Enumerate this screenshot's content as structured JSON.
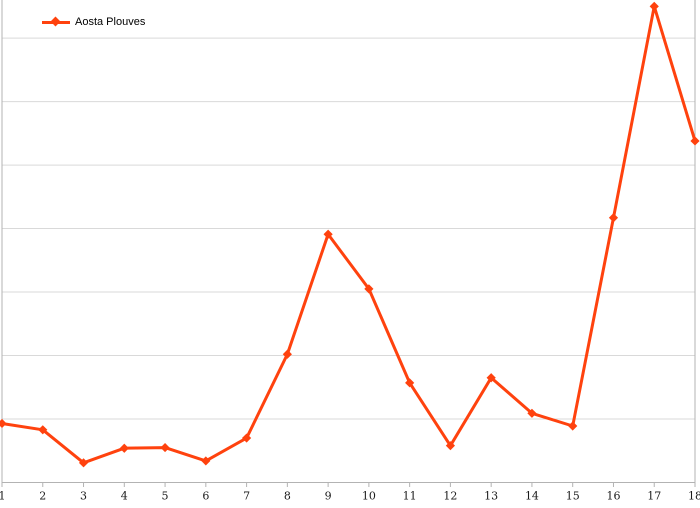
{
  "chart_data": {
    "type": "line",
    "title": "",
    "xlabel": "",
    "ylabel": "",
    "categories": [
      "1",
      "2",
      "3",
      "4",
      "5",
      "6",
      "7",
      "8",
      "9",
      "10",
      "11",
      "12",
      "13",
      "14",
      "15",
      "16",
      "17",
      "18"
    ],
    "series": [
      {
        "name": "Aosta Plouves",
        "marker": "diamond",
        "values": [
          0.93,
          0.83,
          0.31,
          0.54,
          0.55,
          0.34,
          0.7,
          2.02,
          3.91,
          3.05,
          1.57,
          0.58,
          1.65,
          1.09,
          0.89,
          4.17,
          7.5,
          5.38
        ]
      }
    ],
    "ylim": [
      0,
      7.6
    ],
    "y_gridline_step": 1,
    "y_axis_labels": "none",
    "grid": "horizontal",
    "legend_position": "top-left"
  },
  "legend": {
    "label": "Aosta Plouves"
  },
  "colors": {
    "series": "#ff420e",
    "gridline": "#d9d9d9",
    "axis": "#b3b3b3",
    "tick_label": "#1a1a1a",
    "legend_text": "#000000",
    "background": "#ffffff"
  }
}
